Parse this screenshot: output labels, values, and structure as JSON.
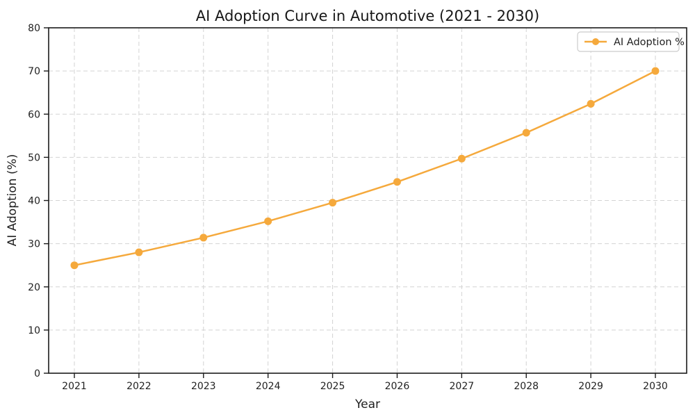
{
  "chart_data": {
    "type": "line",
    "title": "AI Adoption Curve in Automotive (2021 - 2030)",
    "xlabel": "Year",
    "ylabel": "AI Adoption (%)",
    "categories": [
      "2021",
      "2022",
      "2023",
      "2024",
      "2025",
      "2026",
      "2027",
      "2028",
      "2029",
      "2030"
    ],
    "series": [
      {
        "name": "AI Adoption %",
        "values": [
          25.0,
          28.0,
          31.4,
          35.2,
          39.5,
          44.3,
          49.7,
          55.7,
          62.4,
          70.0
        ],
        "color": "#F5A93C",
        "marker": "circle"
      }
    ],
    "ylim": [
      0,
      80
    ],
    "yticks": [
      0,
      10,
      20,
      30,
      40,
      50,
      60,
      70,
      80
    ],
    "grid": {
      "visible": true,
      "style": "dashed",
      "color": "#d3d3d3"
    },
    "legend": {
      "position": "upper right",
      "entries": [
        "AI Adoption %"
      ]
    },
    "colors": {
      "line": "#F5A93C",
      "spine": "#1a1a1a",
      "grid": "#d3d3d3",
      "background": "#ffffff",
      "legend_border": "#cccccc"
    }
  }
}
